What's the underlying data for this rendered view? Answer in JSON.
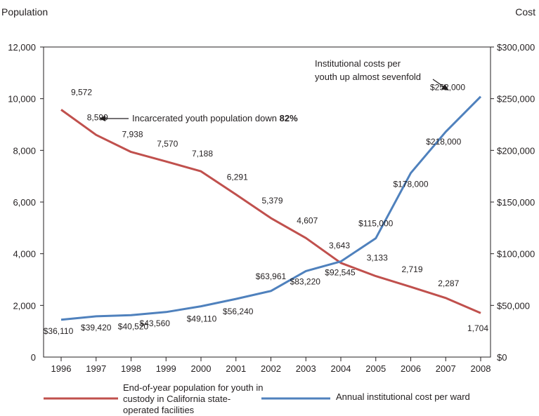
{
  "chart_data": {
    "type": "line",
    "x": [
      1996,
      1997,
      1998,
      1999,
      2000,
      2001,
      2002,
      2003,
      2004,
      2005,
      2006,
      2007,
      2008
    ],
    "y_left": {
      "label": "Population",
      "lim": [
        0,
        12000
      ],
      "ticks": [
        0,
        2000,
        4000,
        6000,
        8000,
        10000,
        12000
      ],
      "tick_labels": [
        "0",
        "2,000",
        "4,000",
        "6,000",
        "8,000",
        "10,000",
        "12,000"
      ]
    },
    "y_right": {
      "label": "Cost",
      "lim": [
        0,
        300000
      ],
      "ticks": [
        0,
        50000,
        100000,
        150000,
        200000,
        250000,
        300000
      ],
      "tick_labels": [
        "$0",
        "$50,000",
        "$100,000",
        "$150,000",
        "$200,000",
        "$250,000",
        "$300,000"
      ]
    },
    "series": [
      {
        "name": "End-of-year population for youth in custody in California state-operated facilities",
        "axis": "left",
        "color": "#c0504d",
        "values": [
          9572,
          8599,
          7938,
          7570,
          7188,
          6291,
          5379,
          4607,
          3643,
          3133,
          2719,
          2287,
          1704
        ],
        "labels": [
          "9,572",
          "8,599",
          "7,938",
          "7,570",
          "7,188",
          "6,291",
          "5,379",
          "4,607",
          "3,643",
          "3,133",
          "2,719",
          "2,287",
          "1,704"
        ]
      },
      {
        "name": "Annual institutional cost per ward",
        "axis": "right",
        "color": "#4f81bd",
        "values": [
          36110,
          39420,
          40520,
          43560,
          49110,
          56240,
          63961,
          83220,
          92545,
          115000,
          178000,
          218000,
          252000
        ],
        "labels": [
          "$36,110",
          "$39,420",
          "$40,520",
          "$43,560",
          "$49,110",
          "$56,240",
          "$63,961",
          "$83,220",
          "$92,545",
          "$115,000",
          "$178,000",
          "$218,000",
          "$252,000"
        ]
      }
    ],
    "annotations": [
      {
        "text": "Incarcerated youth population down",
        "bold": "82%"
      },
      {
        "text": "Institutional costs per youth up almost sevenfold",
        "lines": [
          "Institutional costs per",
          "youth up almost sevenfold"
        ]
      }
    ],
    "grid": false,
    "legend": "bottom"
  }
}
